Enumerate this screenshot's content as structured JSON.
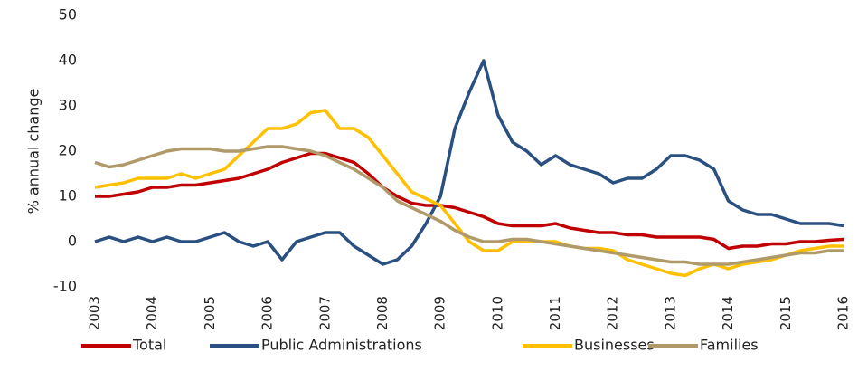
{
  "chart_data": {
    "type": "line",
    "y_label": "% annual change",
    "x": [
      2003,
      2003.25,
      2003.5,
      2003.75,
      2004,
      2004.25,
      2004.5,
      2004.75,
      2005,
      2005.25,
      2005.5,
      2005.75,
      2006,
      2006.25,
      2006.5,
      2006.75,
      2007,
      2007.25,
      2007.5,
      2007.75,
      2008,
      2008.25,
      2008.5,
      2008.75,
      2009,
      2009.25,
      2009.5,
      2009.75,
      2010,
      2010.25,
      2010.5,
      2010.75,
      2011,
      2011.25,
      2011.5,
      2011.75,
      2012,
      2012.25,
      2012.5,
      2012.75,
      2013,
      2013.25,
      2013.5,
      2013.75,
      2014,
      2014.25,
      2014.5,
      2014.75,
      2015,
      2015.25,
      2015.5,
      2015.75,
      2016
    ],
    "series": [
      {
        "name": "Total",
        "color": "#c00000",
        "values": [
          10,
          10,
          10.5,
          11,
          12,
          12,
          12.5,
          12.5,
          13,
          13.5,
          14,
          15,
          16,
          17.5,
          18.5,
          19.5,
          19.5,
          18.5,
          17.5,
          15,
          12,
          10,
          8.5,
          8,
          8,
          7.5,
          6.5,
          5.5,
          4,
          3.5,
          3.5,
          3.5,
          4,
          3,
          2.5,
          2,
          2,
          1.5,
          1.5,
          1,
          1,
          1,
          1,
          0.5,
          -1.5,
          -1,
          -1,
          -0.5,
          -0.5,
          0,
          0,
          0.3,
          0.5
        ]
      },
      {
        "name": "Public Administrations",
        "color": "#2a5082",
        "values": [
          0,
          1,
          0,
          1,
          0,
          1,
          0,
          0,
          1,
          2,
          0,
          -1,
          0,
          -4,
          0,
          1,
          2,
          2,
          -1,
          -3,
          -5,
          -4,
          -1,
          4,
          10,
          25,
          33,
          40,
          28,
          22,
          20,
          17,
          19,
          17,
          16,
          15,
          13,
          14,
          14,
          16,
          19,
          19,
          18,
          16,
          9,
          7,
          6,
          6,
          5,
          4,
          4,
          4,
          3.5
        ]
      },
      {
        "name": "Businesses",
        "color": "#ffc000",
        "values": [
          12,
          12.5,
          13,
          14,
          14,
          14,
          15,
          14,
          15,
          16,
          19,
          22,
          25,
          25,
          26,
          28.5,
          29,
          25,
          25,
          23,
          19,
          15,
          11,
          9.5,
          8,
          4,
          0,
          -2,
          -2,
          0,
          0,
          0,
          0,
          -1,
          -1.5,
          -1.5,
          -2,
          -4,
          -5,
          -6,
          -7,
          -7.5,
          -6,
          -5,
          -6,
          -5,
          -4.5,
          -4,
          -3,
          -2,
          -1.5,
          -1,
          -1
        ]
      },
      {
        "name": "Families",
        "color": "#b09a6a",
        "values": [
          17.5,
          16.5,
          17,
          18,
          19,
          20,
          20.5,
          20.5,
          20.5,
          20,
          20,
          20.5,
          21,
          21,
          20.5,
          20,
          19,
          17.5,
          16,
          14,
          12,
          9,
          7.5,
          6,
          4.5,
          2.5,
          1,
          0,
          0,
          0.5,
          0.5,
          0,
          -0.5,
          -1,
          -1.5,
          -2,
          -2.5,
          -3,
          -3.5,
          -4,
          -4.5,
          -4.5,
          -5,
          -5,
          -5,
          -4.5,
          -4,
          -3.5,
          -3,
          -2.5,
          -2.5,
          -2,
          -2
        ]
      }
    ],
    "xlim": [
      2003,
      2016
    ],
    "xticks": [
      2003,
      2004,
      2005,
      2006,
      2007,
      2008,
      2009,
      2010,
      2011,
      2012,
      2013,
      2014,
      2015,
      2016
    ],
    "ylim": [
      -10,
      50
    ],
    "yticks": [
      -10,
      0,
      10,
      20,
      30,
      40,
      50
    ],
    "legend": "bottom"
  }
}
